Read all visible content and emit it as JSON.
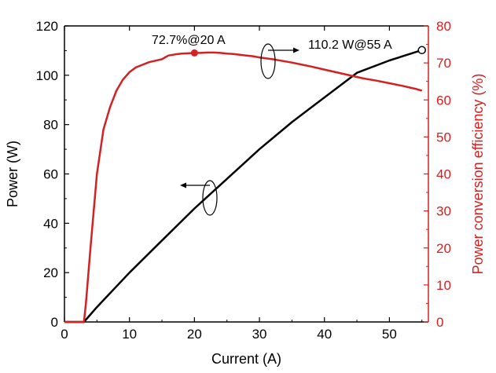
{
  "chart_data": {
    "type": "line",
    "xlabel": "Current (A)",
    "ylabel_left": "Power (W)",
    "ylabel_right": "Power conversion efficiency (%)",
    "xlim": [
      0,
      56
    ],
    "ylim_left": [
      0,
      120
    ],
    "ylim_right": [
      0,
      80
    ],
    "x_ticks": [
      0,
      10,
      20,
      30,
      40,
      50
    ],
    "y_left_ticks": [
      0,
      20,
      40,
      60,
      80,
      100,
      120
    ],
    "y_right_ticks": [
      0,
      10,
      20,
      30,
      40,
      50,
      60,
      70,
      80
    ],
    "grid": false,
    "series": [
      {
        "name": "Power",
        "axis": "left",
        "color": "#000000",
        "x": [
          0,
          3,
          5,
          10,
          15,
          20,
          25,
          30,
          35,
          40,
          45,
          50,
          55
        ],
        "values": [
          0,
          0,
          6,
          20,
          33,
          46,
          58,
          70,
          81,
          91,
          101,
          106,
          110.2
        ]
      },
      {
        "name": "Power conversion efficiency",
        "axis": "right",
        "color": "#d42020",
        "x": [
          0,
          3,
          3.3,
          4,
          5,
          6,
          7,
          8,
          9,
          10,
          11,
          12,
          13,
          14,
          15,
          16,
          17,
          18,
          19,
          20,
          21,
          22,
          23,
          24,
          25,
          26,
          27,
          28,
          29,
          30,
          32,
          35,
          38,
          40,
          42,
          44,
          46,
          48,
          50,
          52,
          54,
          55
        ],
        "values": [
          0,
          0,
          5,
          20,
          40,
          52,
          58,
          62.5,
          65.5,
          67.5,
          68.8,
          69.5,
          70.2,
          70.6,
          71,
          72,
          72.3,
          72.5,
          72.6,
          72.7,
          72.7,
          72.8,
          72.8,
          72.7,
          72.5,
          72.4,
          72.2,
          72,
          71.8,
          71.5,
          71,
          70.1,
          69,
          68.2,
          67.4,
          66.6,
          65.8,
          65.2,
          64.5,
          63.8,
          63,
          62.5
        ]
      }
    ],
    "markers": [
      {
        "series": "Power conversion efficiency",
        "x": 20,
        "y": 72.7,
        "style": "filled-circle",
        "color": "#d42020"
      },
      {
        "series": "Power",
        "x": 55,
        "y": 110.2,
        "style": "open-circle",
        "color": "#000000"
      }
    ],
    "annotations": [
      {
        "text": "72.7%@20 A"
      },
      {
        "text": "110.2 W@55 A"
      }
    ]
  }
}
